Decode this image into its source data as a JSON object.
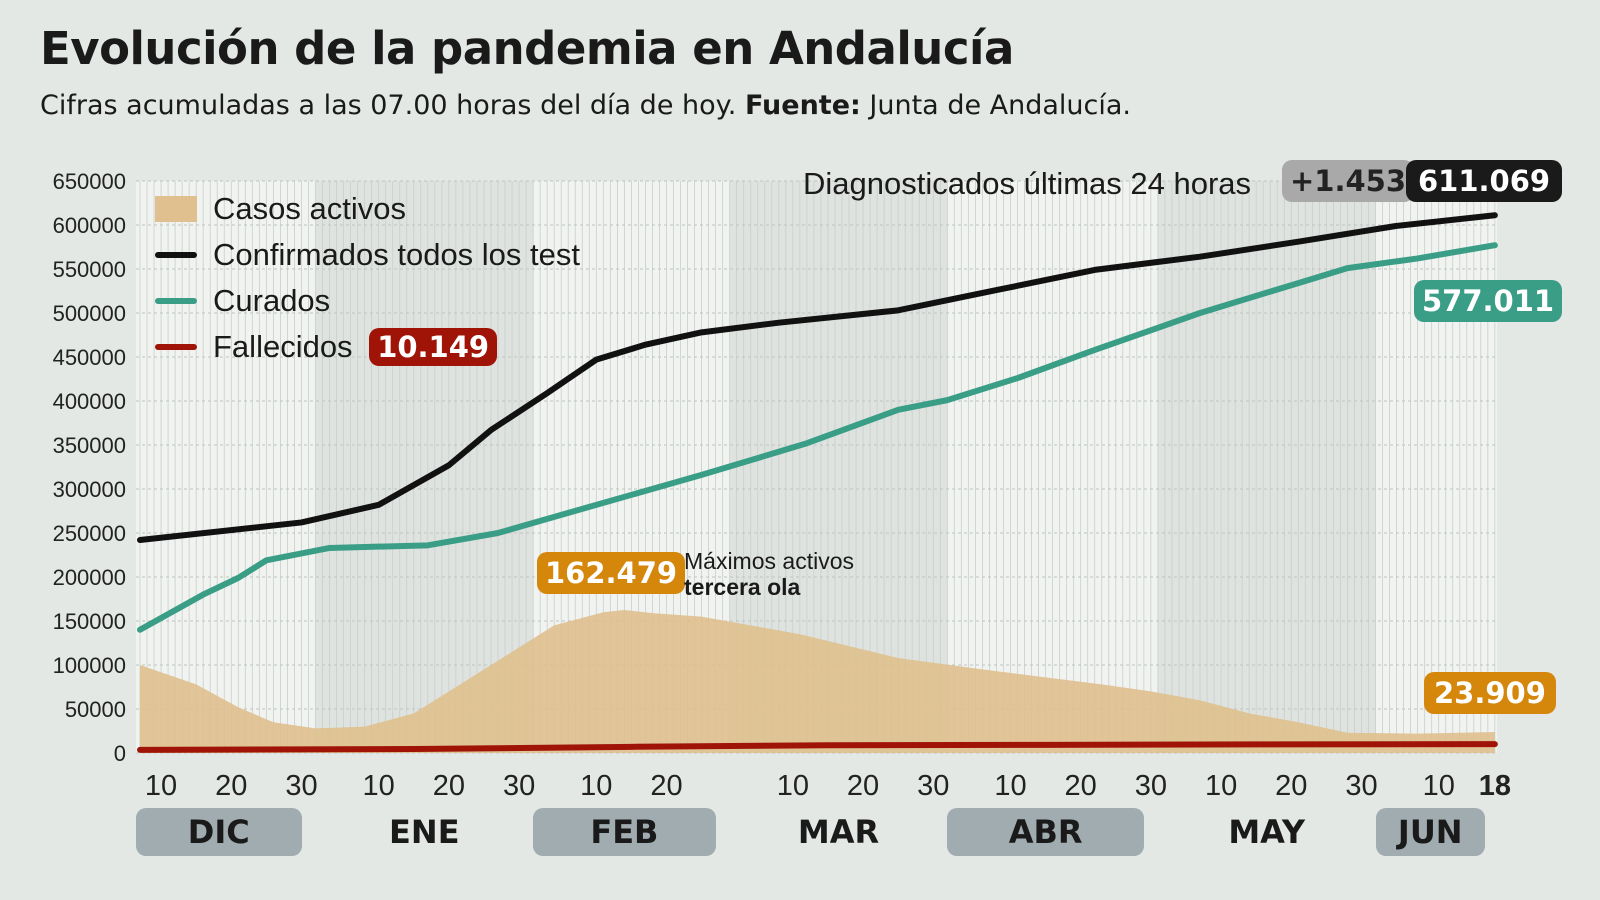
{
  "title": "Evolución de la pandemia en Andalucía",
  "subtitle_pre": "Cifras acumuladas a las 07.00 horas del día de hoy. ",
  "subtitle_bold": "Fuente:",
  "subtitle_post": " Junta de Andalucía.",
  "colors": {
    "activos": "#dfc08e",
    "confirmados": "#111111",
    "curados": "#3a9e86",
    "fallecidos": "#a01408",
    "activos_badge": "#d4870a",
    "delta_badge": "#a9a9a9"
  },
  "top_label": "Diagnosticados últimas 24 horas",
  "delta_badge": "+1.453",
  "confirmados_badge": "611.069",
  "curados_badge": "577.011",
  "fallecidos_badge": "10.149",
  "activos_badge": "23.909",
  "peak_badge": "162.479",
  "peak_note_1": "Máximos activos",
  "peak_note_2": "tercera ola",
  "chart_data": {
    "type": "line",
    "ylim": [
      0,
      650000
    ],
    "yticks": [
      "0",
      "50000",
      "100000",
      "150000",
      "200000",
      "250000",
      "300000",
      "350000",
      "400000",
      "450000",
      "500000",
      "550000",
      "600000",
      "650000"
    ],
    "grid": true,
    "legend_position": "top-left",
    "legend": [
      "Casos activos",
      "Confirmados todos los test",
      "Curados",
      "Fallecidos"
    ],
    "xticks": [
      {
        "date": "2020-12-10",
        "label": "10"
      },
      {
        "date": "2020-12-20",
        "label": "20"
      },
      {
        "date": "2020-12-30",
        "label": "30"
      },
      {
        "date": "2021-01-10",
        "label": "10"
      },
      {
        "date": "2021-01-20",
        "label": "20"
      },
      {
        "date": "2021-01-30",
        "label": "30"
      },
      {
        "date": "2021-02-10",
        "label": "10"
      },
      {
        "date": "2021-02-20",
        "label": "20"
      },
      {
        "date": "2021-03-10",
        "label": "10"
      },
      {
        "date": "2021-03-20",
        "label": "20"
      },
      {
        "date": "2021-03-30",
        "label": "30"
      },
      {
        "date": "2021-04-10",
        "label": "10"
      },
      {
        "date": "2021-04-20",
        "label": "20"
      },
      {
        "date": "2021-04-30",
        "label": "30"
      },
      {
        "date": "2021-05-10",
        "label": "10"
      },
      {
        "date": "2021-05-20",
        "label": "20"
      },
      {
        "date": "2021-05-30",
        "label": "30"
      },
      {
        "date": "2021-06-10",
        "label": "10"
      },
      {
        "date": "2021-06-18",
        "label": "18",
        "bold": true
      }
    ],
    "months": [
      {
        "label": "DIC",
        "start": "2020-12-07",
        "end": "2021-01-01",
        "highlight": true
      },
      {
        "label": "ENE",
        "start": "2021-01-01",
        "end": "2021-02-01",
        "highlight": false
      },
      {
        "label": "FEB",
        "start": "2021-02-01",
        "end": "2021-03-01",
        "highlight": true
      },
      {
        "label": "MAR",
        "start": "2021-03-01",
        "end": "2021-04-01",
        "highlight": false
      },
      {
        "label": "ABR",
        "start": "2021-04-01",
        "end": "2021-05-01",
        "highlight": true
      },
      {
        "label": "MAY",
        "start": "2021-05-01",
        "end": "2021-06-01",
        "highlight": false
      },
      {
        "label": "JUN",
        "start": "2021-06-01",
        "end": "2021-06-18",
        "highlight": true
      }
    ],
    "series": [
      {
        "name": "Casos activos",
        "type": "area",
        "points": [
          [
            "2020-12-07",
            100000
          ],
          [
            "2020-12-15",
            78000
          ],
          [
            "2020-12-21",
            52000
          ],
          [
            "2020-12-26",
            35000
          ],
          [
            "2021-01-01",
            28000
          ],
          [
            "2021-01-08",
            30000
          ],
          [
            "2021-01-15",
            45000
          ],
          [
            "2021-01-22",
            80000
          ],
          [
            "2021-01-28",
            110000
          ],
          [
            "2021-02-04",
            145000
          ],
          [
            "2021-02-11",
            160000
          ],
          [
            "2021-02-14",
            162479
          ],
          [
            "2021-02-18",
            159000
          ],
          [
            "2021-02-25",
            155000
          ],
          [
            "2021-03-11",
            135000
          ],
          [
            "2021-03-25",
            108000
          ],
          [
            "2021-04-06",
            95000
          ],
          [
            "2021-04-16",
            85000
          ],
          [
            "2021-04-23",
            78000
          ],
          [
            "2021-04-30",
            70000
          ],
          [
            "2021-05-07",
            60000
          ],
          [
            "2021-05-14",
            45000
          ],
          [
            "2021-05-21",
            35000
          ],
          [
            "2021-05-28",
            23000
          ],
          [
            "2021-06-07",
            22000
          ],
          [
            "2021-06-18",
            23909
          ]
        ]
      },
      {
        "name": "Confirmados todos los test",
        "type": "line",
        "points": [
          [
            "2020-12-07",
            242000
          ],
          [
            "2020-12-30",
            262000
          ],
          [
            "2021-01-10",
            282000
          ],
          [
            "2021-01-20",
            327000
          ],
          [
            "2021-01-26",
            367000
          ],
          [
            "2021-02-03",
            409000
          ],
          [
            "2021-02-10",
            447000
          ],
          [
            "2021-02-17",
            464000
          ],
          [
            "2021-02-25",
            478000
          ],
          [
            "2021-03-08",
            489000
          ],
          [
            "2021-03-25",
            503000
          ],
          [
            "2021-04-08",
            526000
          ],
          [
            "2021-04-22",
            549000
          ],
          [
            "2021-05-07",
            564000
          ],
          [
            "2021-05-21",
            581000
          ],
          [
            "2021-06-04",
            599000
          ],
          [
            "2021-06-18",
            611069
          ]
        ]
      },
      {
        "name": "Curados",
        "type": "line",
        "points": [
          [
            "2020-12-07",
            140000
          ],
          [
            "2020-12-16",
            180000
          ],
          [
            "2020-12-21",
            199000
          ],
          [
            "2020-12-25",
            219000
          ],
          [
            "2021-01-03",
            233000
          ],
          [
            "2021-01-17",
            236000
          ],
          [
            "2021-01-27",
            250000
          ],
          [
            "2021-02-10",
            282000
          ],
          [
            "2021-02-25",
            316000
          ],
          [
            "2021-03-12",
            352000
          ],
          [
            "2021-03-25",
            390000
          ],
          [
            "2021-04-01",
            401000
          ],
          [
            "2021-04-11",
            426000
          ],
          [
            "2021-04-22",
            458000
          ],
          [
            "2021-05-07",
            500000
          ],
          [
            "2021-05-21",
            534000
          ],
          [
            "2021-05-28",
            551000
          ],
          [
            "2021-06-07",
            562000
          ],
          [
            "2021-06-18",
            577011
          ]
        ]
      },
      {
        "name": "Fallecidos",
        "type": "line",
        "points": [
          [
            "2020-12-07",
            3500
          ],
          [
            "2021-01-15",
            4500
          ],
          [
            "2021-02-15",
            7000
          ],
          [
            "2021-03-15",
            8800
          ],
          [
            "2021-04-15",
            9300
          ],
          [
            "2021-05-15",
            9800
          ],
          [
            "2021-06-18",
            10149
          ]
        ]
      }
    ]
  }
}
